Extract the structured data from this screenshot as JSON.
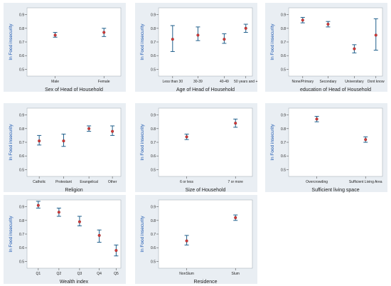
{
  "colors": {
    "outer_background": "#e9eef3",
    "plot_background": "#ffffff",
    "errorbar": "#1f5f8b",
    "point": "#d33c3c",
    "ylabel_color": "#1a56b0",
    "text": "#222222"
  },
  "chart_data": [
    {
      "type": "scatter",
      "subtype": "point_with_ci",
      "ylabel": "ln Food insecurity",
      "xlabel": "Sex of Head of Household",
      "yticks": [
        0.5,
        0.6,
        0.7,
        0.8,
        0.9
      ],
      "ylim": [
        0.45,
        0.95
      ],
      "categories": [
        "Male",
        "Female"
      ],
      "values": [
        0.75,
        0.77
      ],
      "ci_low": [
        0.735,
        0.74
      ],
      "ci_high": [
        0.77,
        0.8
      ]
    },
    {
      "type": "scatter",
      "subtype": "point_with_ci",
      "ylabel": "ln Food insecurity",
      "xlabel": "Age of Head of Household",
      "yticks": [
        0.5,
        0.6,
        0.7,
        0.8,
        0.9
      ],
      "ylim": [
        0.45,
        0.95
      ],
      "categories": [
        "Less than 30",
        "30-39",
        "40-49",
        "50 years and +"
      ],
      "values": [
        0.72,
        0.75,
        0.72,
        0.8
      ],
      "ci_low": [
        0.63,
        0.71,
        0.69,
        0.77
      ],
      "ci_high": [
        0.82,
        0.81,
        0.76,
        0.83
      ]
    },
    {
      "type": "scatter",
      "subtype": "point_with_ci",
      "ylabel": "ln Food insecurity",
      "xlabel": "education of Head of Household",
      "yticks": [
        0.5,
        0.6,
        0.7,
        0.8,
        0.9
      ],
      "ylim": [
        0.45,
        0.95
      ],
      "categories": [
        "None/Primary",
        "Secondary",
        "Universitary",
        "Dont know"
      ],
      "values": [
        0.86,
        0.83,
        0.65,
        0.75
      ],
      "ci_low": [
        0.84,
        0.81,
        0.62,
        0.64
      ],
      "ci_high": [
        0.88,
        0.85,
        0.68,
        0.87
      ]
    },
    {
      "type": "scatter",
      "subtype": "point_with_ci",
      "ylabel": "ln Food insecurity",
      "xlabel": "Religion",
      "yticks": [
        0.5,
        0.6,
        0.7,
        0.8,
        0.9
      ],
      "ylim": [
        0.45,
        0.95
      ],
      "categories": [
        "Catholic",
        "Protestant",
        "Evangelical",
        "Other"
      ],
      "values": [
        0.71,
        0.71,
        0.8,
        0.78
      ],
      "ci_low": [
        0.68,
        0.67,
        0.78,
        0.75
      ],
      "ci_high": [
        0.75,
        0.76,
        0.82,
        0.82
      ]
    },
    {
      "type": "scatter",
      "subtype": "point_with_ci",
      "ylabel": "ln Food insecurity",
      "xlabel": "Size of Household",
      "yticks": [
        0.5,
        0.6,
        0.7,
        0.8,
        0.9
      ],
      "ylim": [
        0.45,
        0.95
      ],
      "categories": [
        "6 or less",
        "7 or more"
      ],
      "values": [
        0.74,
        0.84
      ],
      "ci_low": [
        0.72,
        0.81
      ],
      "ci_high": [
        0.76,
        0.87
      ]
    },
    {
      "type": "scatter",
      "subtype": "point_with_ci",
      "ylabel": "ln Food insecurity",
      "xlabel": "Sufficient living space",
      "yticks": [
        0.5,
        0.6,
        0.7,
        0.8,
        0.9
      ],
      "ylim": [
        0.45,
        0.95
      ],
      "categories": [
        "Overcrowding",
        "Sufficient Living   Area"
      ],
      "values": [
        0.87,
        0.72
      ],
      "ci_low": [
        0.85,
        0.7
      ],
      "ci_high": [
        0.89,
        0.74
      ]
    },
    {
      "type": "scatter",
      "subtype": "point_with_ci",
      "ylabel": "ln Food insecurity",
      "xlabel": "Wealth index",
      "yticks": [
        0.5,
        0.6,
        0.7,
        0.8,
        0.9
      ],
      "ylim": [
        0.45,
        0.95
      ],
      "categories": [
        "Q1",
        "Q2",
        "Q3",
        "Q4",
        "Q5"
      ],
      "values": [
        0.91,
        0.86,
        0.79,
        0.69,
        0.58
      ],
      "ci_low": [
        0.89,
        0.83,
        0.76,
        0.64,
        0.54
      ],
      "ci_high": [
        0.94,
        0.89,
        0.83,
        0.73,
        0.62
      ]
    },
    {
      "type": "scatter",
      "subtype": "point_with_ci",
      "ylabel": "ln Food insecurity",
      "xlabel": "Residence",
      "yticks": [
        0.5,
        0.6,
        0.7,
        0.8,
        0.9
      ],
      "ylim": [
        0.45,
        0.95
      ],
      "categories": [
        "NonSlum",
        "Slum"
      ],
      "values": [
        0.65,
        0.82
      ],
      "ci_low": [
        0.62,
        0.8
      ],
      "ci_high": [
        0.69,
        0.84
      ]
    }
  ]
}
